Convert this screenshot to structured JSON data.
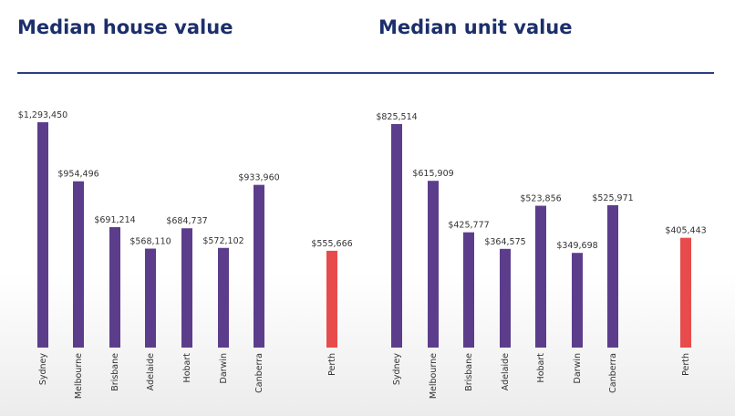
{
  "colors": {
    "title": "#1c2f6b",
    "divider": "#2b3f80",
    "bar": "#5c3d8c",
    "highlight": "#e84b4b"
  },
  "chart_data": [
    {
      "type": "bar",
      "title": "Median house value",
      "categories": [
        "Sydney",
        "Melbourne",
        "Brisbane",
        "Adelaide",
        "Hobart",
        "Darwin",
        "Canberra",
        "Perth"
      ],
      "values": [
        1293450,
        954496,
        691214,
        568110,
        684737,
        572102,
        933960,
        555666
      ],
      "value_labels": [
        "$1,293,450",
        "$954,496",
        "$691,214",
        "$568,110",
        "$684,737",
        "$572,102",
        "$933,960",
        "$555,666"
      ],
      "highlight": "Perth",
      "ylim": [
        0,
        1293450
      ]
    },
    {
      "type": "bar",
      "title": "Median unit value",
      "categories": [
        "Sydney",
        "Melbourne",
        "Brisbane",
        "Adelaide",
        "Hobart",
        "Darwin",
        "Canberra",
        "Perth"
      ],
      "values": [
        825514,
        615909,
        425777,
        364575,
        523856,
        349698,
        525971,
        405443
      ],
      "value_labels": [
        "$825,514",
        "$615,909",
        "$425,777",
        "$364,575",
        "$523,856",
        "$349,698",
        "$525,971",
        "$405,443"
      ],
      "highlight": "Perth",
      "ylim": [
        0,
        825514
      ]
    }
  ]
}
